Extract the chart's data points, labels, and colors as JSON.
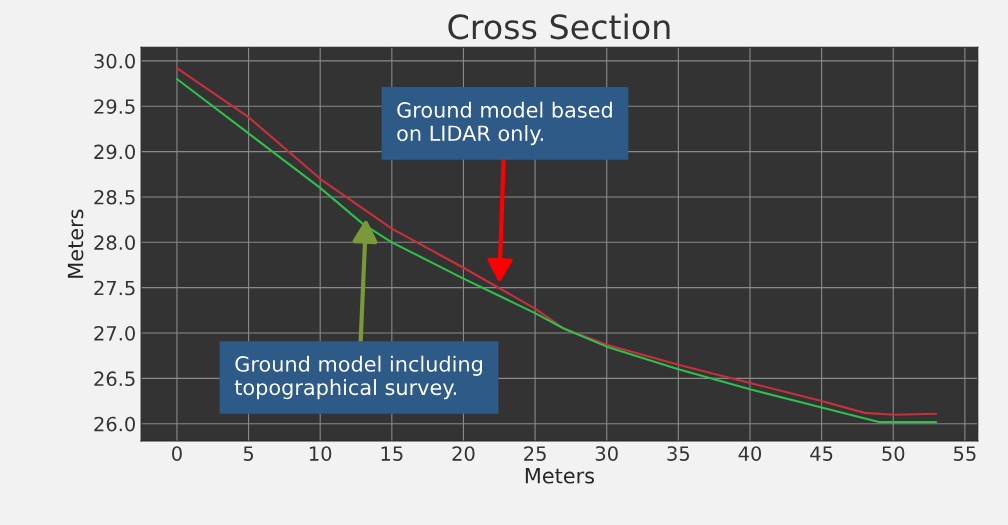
{
  "chart_data": {
    "type": "line",
    "title": "Cross Section",
    "xlabel": "Meters",
    "ylabel": "Meters",
    "xlim": [
      -2.5,
      55.9
    ],
    "ylim": [
      25.81,
      30.15
    ],
    "xticks": [
      0,
      5,
      10,
      15,
      20,
      25,
      30,
      35,
      40,
      45,
      50,
      55
    ],
    "yticks": [
      {
        "value": 26,
        "label": "26.0"
      },
      {
        "value": 26.5,
        "label": "26.5"
      },
      {
        "value": 27,
        "label": "27.0"
      },
      {
        "value": 27.5,
        "label": "27.5"
      },
      {
        "value": 28,
        "label": "28.0"
      },
      {
        "value": 28.5,
        "label": "28.5"
      },
      {
        "value": 29,
        "label": "29.0"
      },
      {
        "value": 29.5,
        "label": "29.5"
      },
      {
        "value": 30,
        "label": "30.0"
      }
    ],
    "grid": true,
    "line_style": "solid",
    "marker": "none",
    "x": [
      0,
      5,
      10,
      15,
      20,
      25,
      27,
      30,
      35,
      40,
      45,
      48,
      50,
      53
    ],
    "series": [
      {
        "color": "#c8303c",
        "values": [
          29.92,
          29.38,
          28.7,
          28.15,
          27.72,
          27.27,
          27.05,
          26.87,
          26.65,
          26.45,
          26.25,
          26.12,
          26.1,
          26.11
        ]
      },
      {
        "color": "#2fbf4c",
        "x": [
          0,
          5,
          10,
          13,
          15,
          20,
          25,
          27,
          30,
          35,
          40,
          45,
          49,
          53
        ],
        "values": [
          29.8,
          29.2,
          28.6,
          28.2,
          28.0,
          27.6,
          27.22,
          27.05,
          26.85,
          26.6,
          26.38,
          26.18,
          26.02,
          26.02
        ]
      }
    ],
    "annotations": [
      {
        "text": "Ground model based\non LIDAR only.",
        "x": 22.5,
        "y": 27.55
      },
      {
        "text": "Ground model including\ntopographical survey.",
        "x": 13.2,
        "y": 28.26
      }
    ]
  }
}
